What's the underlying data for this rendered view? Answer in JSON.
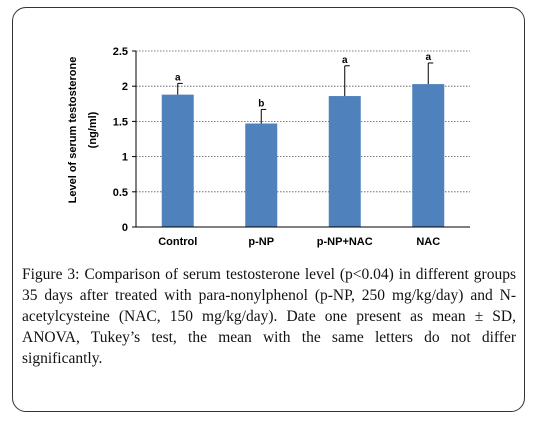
{
  "chart_data": {
    "type": "bar",
    "categories": [
      "Control",
      "p-NP",
      "p-NP+NAC",
      "NAC"
    ],
    "values": [
      1.88,
      1.47,
      1.86,
      2.03
    ],
    "errors": [
      0.16,
      0.2,
      0.43,
      0.3
    ],
    "letters": [
      "a",
      "b",
      "a",
      "a"
    ],
    "ylabel_line1": "Level of serum testosterone",
    "ylabel_line2": "(ng/ml)",
    "ylim": [
      0,
      2.5
    ],
    "yticks": [
      "0",
      "0.5",
      "1",
      "1.5",
      "2",
      "2.5"
    ],
    "bar_color": "#4f81bd",
    "grid": "dotted horizontal"
  },
  "caption": {
    "label": "Figure 3:",
    "text": "Comparison of serum testosterone level (p<0.04) in different groups 35 days after treated with para-nonylphenol (p-NP, 250 mg/kg/day) and N-acetylcysteine (NAC, 150 mg/kg/day). Date one present as mean ± SD, ANOVA, Tukey’s test, the mean with the same letters do not differ significantly."
  }
}
